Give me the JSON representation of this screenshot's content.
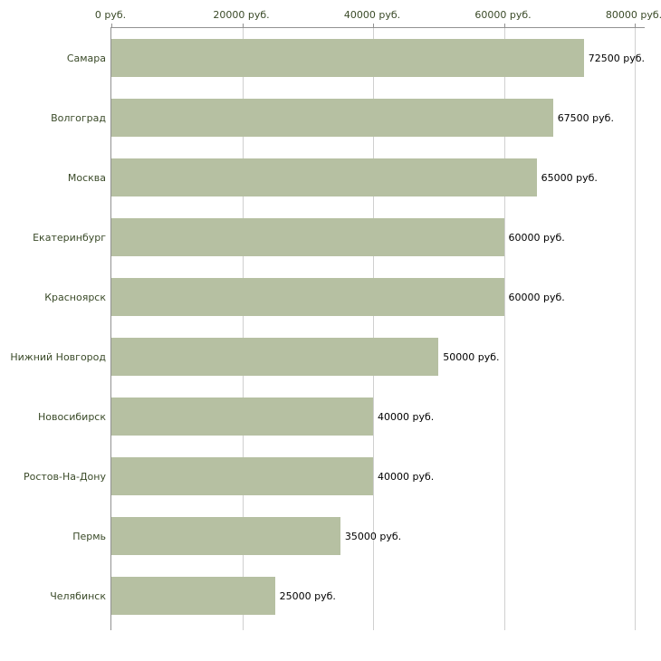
{
  "chart_data": {
    "type": "bar",
    "orientation": "horizontal",
    "title": "",
    "categories": [
      "Самара",
      "Волгоград",
      "Москва",
      "Екатеринбург",
      "Красноярск",
      "Нижний Новгород",
      "Новосибирск",
      "Ростов-На-Дону",
      "Пермь",
      "Челябинск"
    ],
    "values": [
      72500,
      67500,
      65000,
      60000,
      60000,
      50000,
      40000,
      40000,
      35000,
      25000
    ],
    "value_labels": [
      "72500 руб.",
      "67500 руб.",
      "65000 руб.",
      "60000 руб.",
      "60000 руб.",
      "50000 руб.",
      "40000 руб.",
      "40000 руб.",
      "35000 руб.",
      "25000 руб."
    ],
    "x_ticks": [
      "0 руб.",
      "20000 руб.",
      "40000 руб.",
      "60000 руб.",
      "80000 руб."
    ],
    "x_tick_values": [
      0,
      20000,
      40000,
      60000,
      80000
    ],
    "xlim": [
      0,
      80000
    ],
    "unit": "руб.",
    "xlabel": "",
    "ylabel": "",
    "legend": "none",
    "grid": "vertical",
    "colors": {
      "bar": "#b6c0a2",
      "grid": "#d0d0d0",
      "axis": "#919191",
      "tick_text": "#3a4a28",
      "category_text": "#3a4a28",
      "value_text": "#000000",
      "background": "#ffffff"
    }
  }
}
